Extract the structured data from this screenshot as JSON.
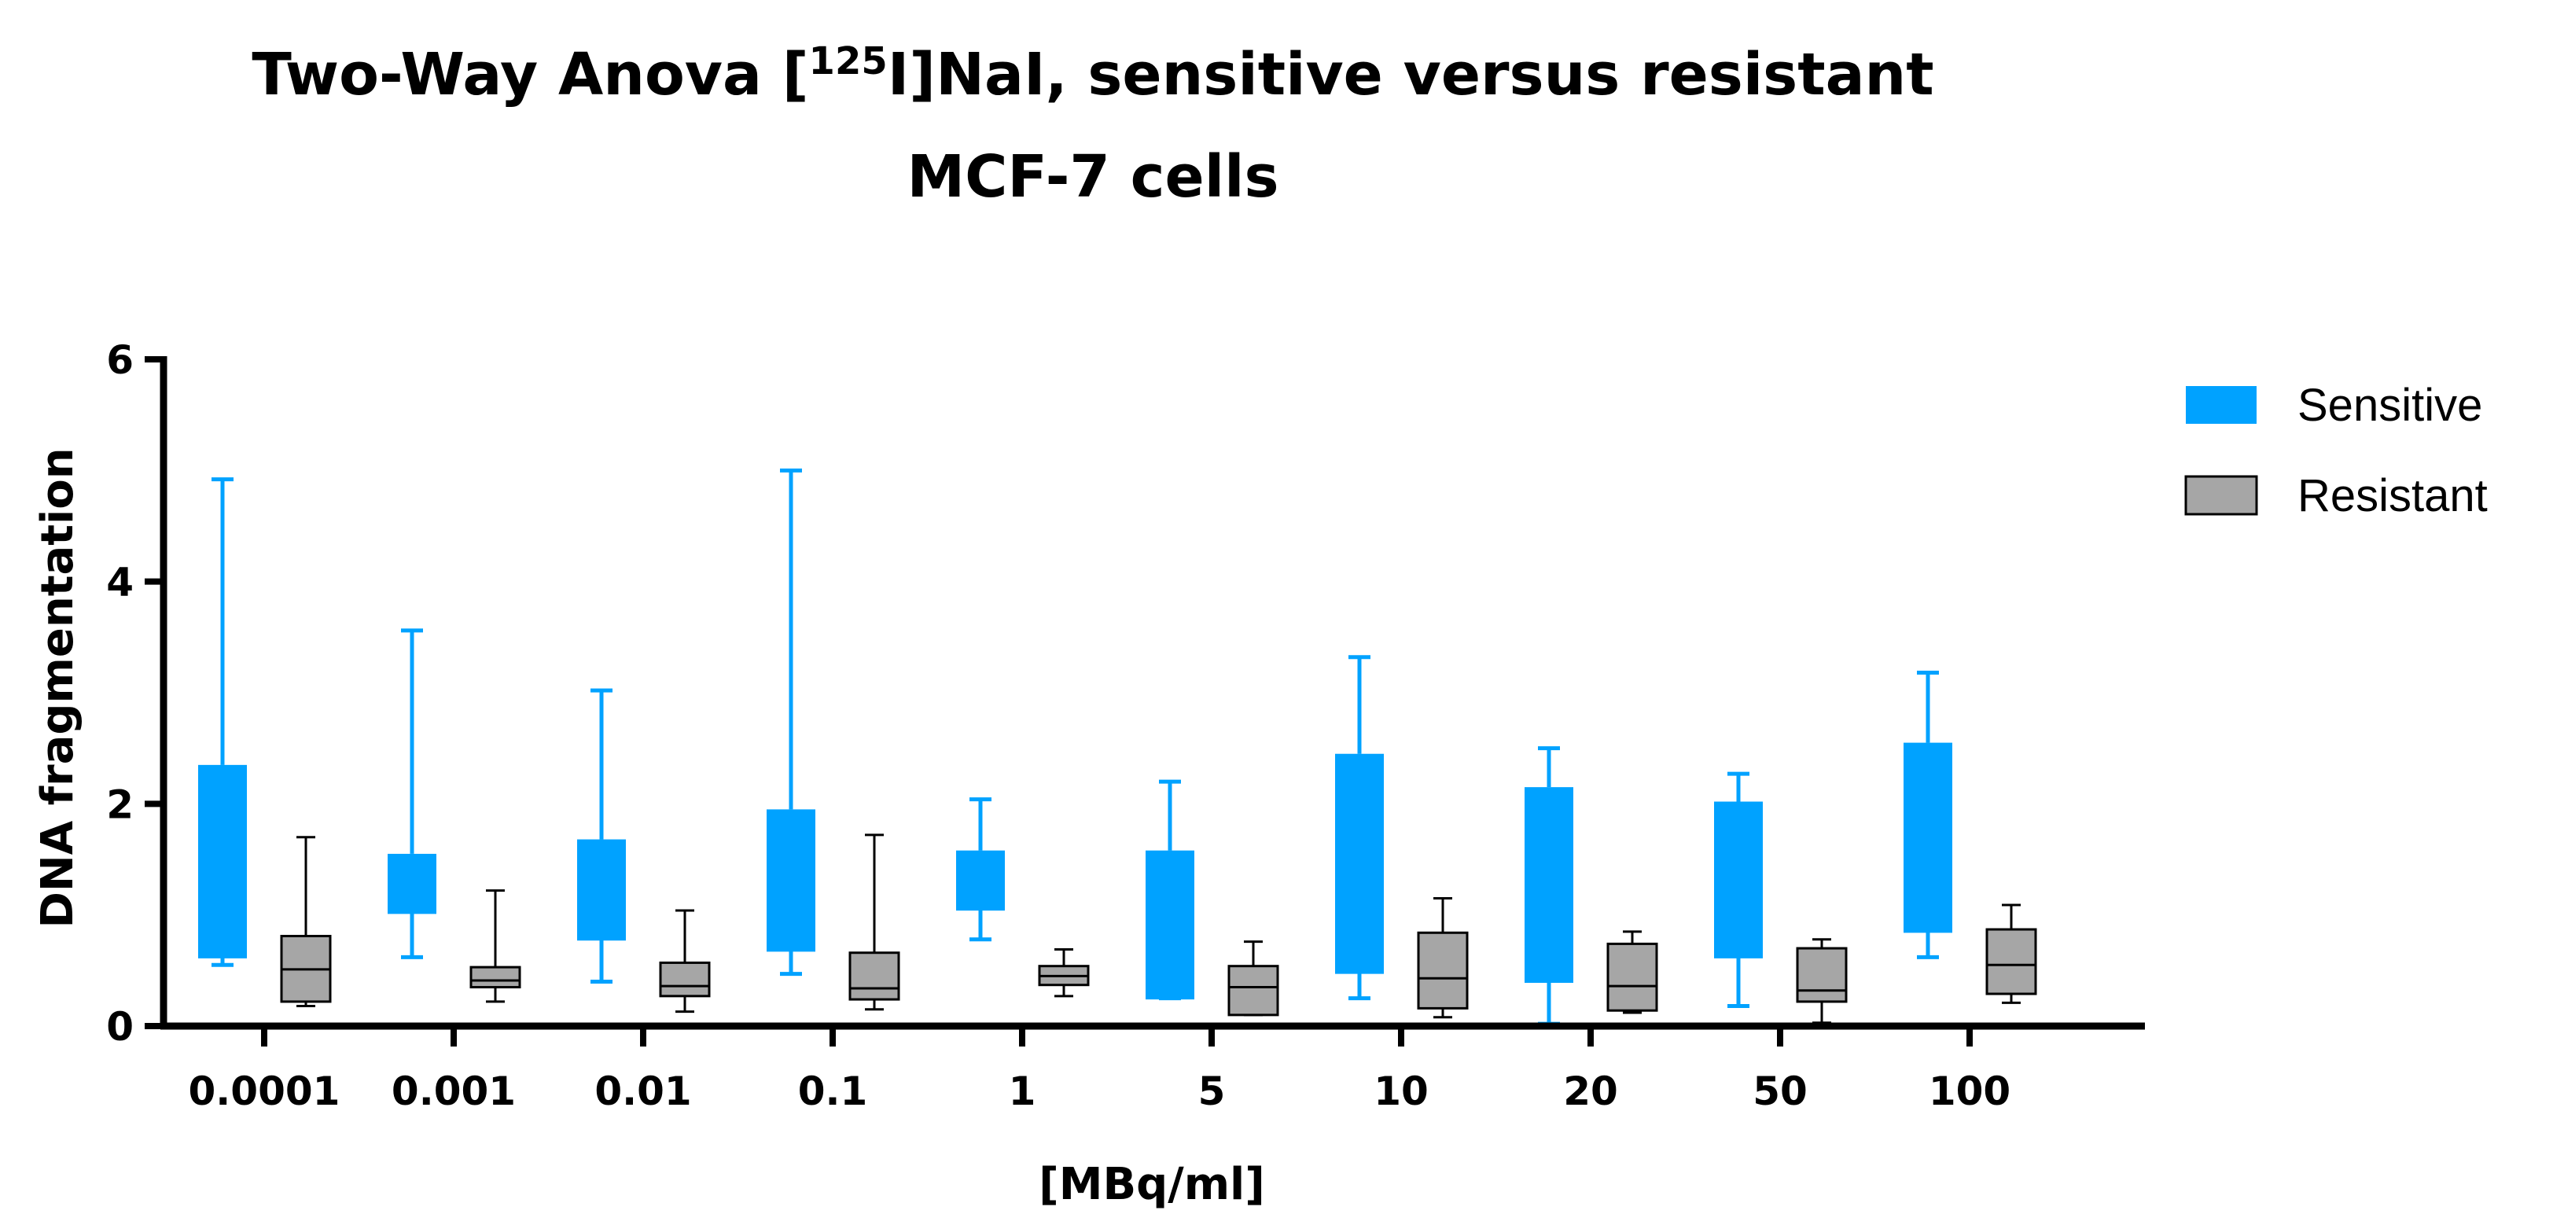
{
  "chart_data": {
    "type": "boxplot",
    "title": {
      "line1_prefix": "Two-Way Anova [",
      "line1_superscript": "125",
      "line1_suffix": "I]NaI, sensitive versus resistant",
      "line2": "MCF-7 cells"
    },
    "xlabel": "[MBq/ml]",
    "ylabel": "DNA fragmentation",
    "ylim": [
      0,
      6
    ],
    "yticks": [
      "0",
      "2",
      "4",
      "6"
    ],
    "categories": [
      "0.0001",
      "0.001",
      "0.01",
      "0.1",
      "1",
      "5",
      "10",
      "20",
      "50",
      "100"
    ],
    "legend_position": "top-right",
    "series": [
      {
        "name": "Sensitive",
        "color": "#00a2ff",
        "boxes": [
          {
            "min": 0.55,
            "q1": 0.62,
            "median": 0.62,
            "q3": 2.35,
            "max": 4.92
          },
          {
            "min": 0.62,
            "q1": 1.02,
            "median": 1.02,
            "q3": 1.55,
            "max": 3.56
          },
          {
            "min": 0.4,
            "q1": 0.78,
            "median": 0.78,
            "q3": 1.68,
            "max": 3.02
          },
          {
            "min": 0.47,
            "q1": 0.68,
            "median": 0.68,
            "q3": 1.95,
            "max": 5.0
          },
          {
            "min": 0.78,
            "q1": 1.05,
            "median": 1.05,
            "q3": 1.58,
            "max": 2.04
          },
          {
            "min": 0.25,
            "q1": 0.25,
            "median": 0.25,
            "q3": 1.58,
            "max": 2.2
          },
          {
            "min": 0.25,
            "q1": 0.48,
            "median": 0.48,
            "q3": 2.45,
            "max": 3.32
          },
          {
            "min": 0.02,
            "q1": 0.4,
            "median": 0.4,
            "q3": 2.15,
            "max": 2.5
          },
          {
            "min": 0.18,
            "q1": 0.62,
            "median": 0.62,
            "q3": 2.02,
            "max": 2.27
          },
          {
            "min": 0.62,
            "q1": 0.85,
            "median": 0.85,
            "q3": 2.55,
            "max": 3.18
          }
        ]
      },
      {
        "name": "Resistant",
        "color": "#a6a6a6",
        "boxes": [
          {
            "min": 0.18,
            "q1": 0.22,
            "median": 0.51,
            "q3": 0.81,
            "max": 1.7
          },
          {
            "min": 0.22,
            "q1": 0.35,
            "median": 0.41,
            "q3": 0.53,
            "max": 1.22
          },
          {
            "min": 0.13,
            "q1": 0.27,
            "median": 0.36,
            "q3": 0.57,
            "max": 1.04
          },
          {
            "min": 0.15,
            "q1": 0.24,
            "median": 0.34,
            "q3": 0.66,
            "max": 1.72
          },
          {
            "min": 0.27,
            "q1": 0.37,
            "median": 0.45,
            "q3": 0.54,
            "max": 0.69
          },
          {
            "min": 0.1,
            "q1": 0.1,
            "median": 0.35,
            "q3": 0.54,
            "max": 0.76
          },
          {
            "min": 0.08,
            "q1": 0.16,
            "median": 0.43,
            "q3": 0.84,
            "max": 1.15
          },
          {
            "min": 0.12,
            "q1": 0.14,
            "median": 0.36,
            "q3": 0.74,
            "max": 0.85
          },
          {
            "min": 0.03,
            "q1": 0.22,
            "median": 0.32,
            "q3": 0.7,
            "max": 0.78
          },
          {
            "min": 0.21,
            "q1": 0.29,
            "median": 0.55,
            "q3": 0.87,
            "max": 1.09
          }
        ]
      }
    ]
  }
}
